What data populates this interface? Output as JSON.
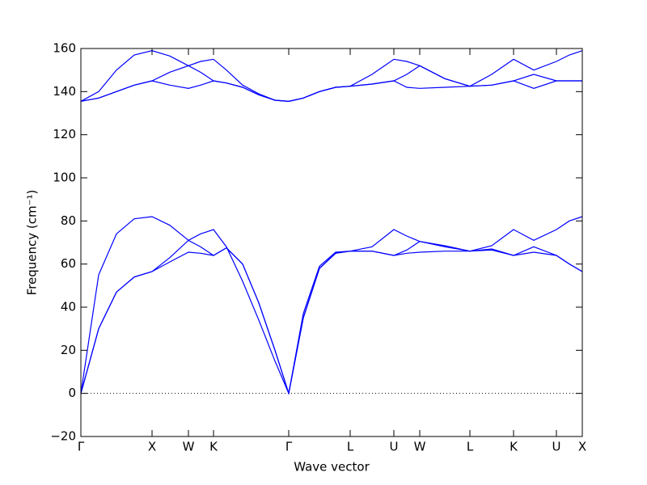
{
  "chart_data": {
    "type": "line",
    "xlabel": "Wave vector",
    "ylabel": "Frequency (cm⁻¹)",
    "x": [
      0,
      0.22,
      0.44,
      0.66,
      0.88,
      1.1,
      1.33,
      1.48,
      1.64,
      1.8,
      2.0,
      2.2,
      2.4,
      2.57,
      2.75,
      2.95,
      3.15,
      3.33,
      3.6,
      3.87,
      4.03,
      4.19,
      4.5,
      4.81,
      5.08,
      5.35,
      5.6,
      5.88,
      6.04,
      6.2
    ],
    "series": [
      {
        "color": "#0000ff",
        "values": [
          0,
          30,
          47,
          54,
          56.5,
          61,
          65.5,
          65,
          64,
          67.5,
          60,
          42,
          20,
          0,
          35,
          58,
          65,
          66,
          66,
          64,
          65,
          65.5,
          66,
          66,
          66.5,
          64,
          65.5,
          64,
          60,
          56.5
        ]
      },
      {
        "color": "#0000ff",
        "values": [
          0,
          30,
          47,
          54,
          56.5,
          63,
          71,
          68,
          64,
          67.5,
          60,
          42,
          20,
          0,
          35,
          58,
          65,
          66,
          66,
          64,
          66.5,
          70.5,
          68,
          66,
          67,
          64,
          68,
          64,
          60,
          56.5
        ]
      },
      {
        "color": "#0000ff",
        "values": [
          0,
          55,
          74,
          81,
          82,
          78,
          71,
          74,
          76,
          68,
          52,
          34,
          15,
          0,
          37,
          59,
          65.5,
          66,
          68,
          76,
          73,
          70.5,
          68.5,
          66,
          68.5,
          76,
          71,
          76,
          80,
          82
        ]
      },
      {
        "color": "#0000ff",
        "values": [
          135.5,
          137,
          140,
          143,
          145,
          143,
          141.5,
          143,
          145,
          144,
          142,
          138.5,
          136,
          135.5,
          137,
          140,
          142,
          142.5,
          143.5,
          145,
          142,
          141.5,
          142,
          142.5,
          143,
          145,
          141.5,
          145,
          145,
          145
        ]
      },
      {
        "color": "#0000ff",
        "values": [
          135.5,
          137,
          140,
          143,
          145,
          149,
          152,
          149,
          145,
          144,
          142,
          138.5,
          136,
          135.5,
          137,
          140,
          142,
          142.5,
          143.5,
          145,
          148,
          152,
          146,
          142.5,
          143,
          145,
          148,
          145,
          145,
          145
        ]
      },
      {
        "color": "#0000ff",
        "values": [
          135.5,
          140,
          150,
          157,
          159,
          156.5,
          152,
          154,
          155,
          150,
          143,
          139,
          136,
          135.5,
          137,
          140,
          142,
          142.5,
          148,
          155,
          154,
          152,
          146,
          142.5,
          148,
          155,
          150,
          154,
          157,
          159
        ]
      }
    ],
    "xlim": [
      0,
      6.2
    ],
    "xticks": [
      {
        "value": 0,
        "label": "Γ"
      },
      {
        "value": 0.88,
        "label": "X"
      },
      {
        "value": 1.33,
        "label": "W"
      },
      {
        "value": 1.64,
        "label": "K"
      },
      {
        "value": 2.57,
        "label": "Γ"
      },
      {
        "value": 3.33,
        "label": "L"
      },
      {
        "value": 3.87,
        "label": "U"
      },
      {
        "value": 4.19,
        "label": "W"
      },
      {
        "value": 4.81,
        "label": "L"
      },
      {
        "value": 5.35,
        "label": "K"
      },
      {
        "value": 5.88,
        "label": "U"
      },
      {
        "value": 6.2,
        "label": "X"
      }
    ],
    "ylim": [
      -20,
      160
    ],
    "yticks": [
      {
        "value": -20,
        "label": "−20"
      },
      0,
      20,
      40,
      60,
      80,
      100,
      120,
      140,
      160
    ],
    "hline": 0,
    "grid": false
  }
}
